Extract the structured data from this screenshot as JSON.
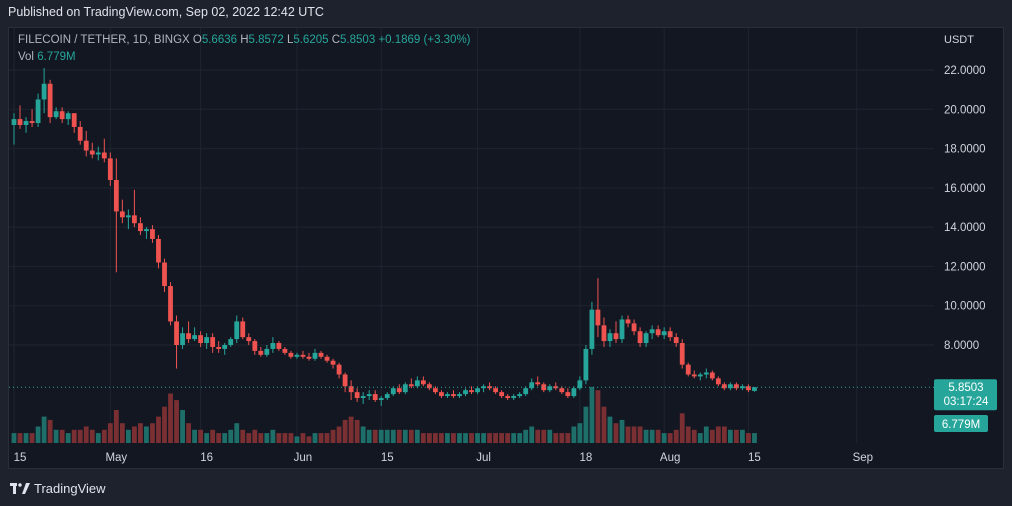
{
  "header": {
    "published": "Published on TradingView.com, Sep 02, 2022 12:42 UTC"
  },
  "legend": {
    "symbol": "FILECOIN / TETHER, 1D, BINGX",
    "o_label": "O",
    "o": "5.6636",
    "h_label": "H",
    "h": "5.8572",
    "l_label": "L",
    "l": "5.6205",
    "c_label": "C",
    "c": "5.8503",
    "change": "+0.1869 (+3.30%)",
    "vol_label": "Vol",
    "vol": "6.779M"
  },
  "axis": {
    "unit": "USDT"
  },
  "badges": {
    "price": "5.8503",
    "countdown": "03:17:24",
    "volume": "6.779M"
  },
  "footer": {
    "brand": "TradingView"
  },
  "colors": {
    "up": "#26a69a",
    "down": "#ef5350",
    "up_vol": "#1e6e69",
    "down_vol": "#7a2f33",
    "background": "#131722",
    "grid": "#1f2430"
  },
  "chart_data": {
    "type": "candlestick",
    "yticks": [
      "22.0000",
      "20.0000",
      "18.0000",
      "16.0000",
      "14.0000",
      "12.0000",
      "10.0000",
      "8.0000"
    ],
    "ylim": [
      4.5,
      23.5
    ],
    "xticks": [
      {
        "label": "15",
        "day": 0
      },
      {
        "label": "May",
        "day": 16
      },
      {
        "label": "16",
        "day": 31
      },
      {
        "label": "Jun",
        "day": 47
      },
      {
        "label": "15",
        "day": 61
      },
      {
        "label": "Jul",
        "day": 77
      },
      {
        "label": "18",
        "day": 94
      },
      {
        "label": "Aug",
        "day": 108
      },
      {
        "label": "15",
        "day": 122
      },
      {
        "label": "Sep",
        "day": 140
      }
    ],
    "last_price": 5.8503,
    "candles": [
      [
        19.2,
        19.8,
        18.2,
        19.5,
        3
      ],
      [
        19.5,
        20.2,
        19.0,
        19.2,
        3
      ],
      [
        19.2,
        19.6,
        18.8,
        19.4,
        3
      ],
      [
        19.4,
        20.0,
        19.1,
        19.3,
        3
      ],
      [
        19.3,
        20.8,
        19.1,
        20.5,
        5
      ],
      [
        20.5,
        22.1,
        19.8,
        21.3,
        8
      ],
      [
        21.3,
        21.5,
        19.3,
        19.6,
        7
      ],
      [
        19.6,
        20.1,
        19.5,
        19.9,
        4
      ],
      [
        19.9,
        20.1,
        19.3,
        19.5,
        4
      ],
      [
        19.5,
        19.9,
        19.2,
        19.8,
        3
      ],
      [
        19.8,
        19.8,
        18.8,
        19.1,
        4
      ],
      [
        19.1,
        19.4,
        18.2,
        18.4,
        4
      ],
      [
        18.4,
        18.9,
        17.6,
        17.9,
        5
      ],
      [
        17.9,
        18.3,
        17.5,
        17.7,
        4
      ],
      [
        17.7,
        18.1,
        17.4,
        17.8,
        3
      ],
      [
        17.8,
        18.5,
        17.3,
        17.5,
        4
      ],
      [
        17.5,
        17.8,
        16.1,
        16.4,
        6
      ],
      [
        16.4,
        17.5,
        11.7,
        14.8,
        10
      ],
      [
        14.8,
        15.4,
        14.2,
        14.5,
        6
      ],
      [
        14.5,
        14.9,
        13.9,
        14.6,
        4
      ],
      [
        14.6,
        15.9,
        14.0,
        14.2,
        5
      ],
      [
        14.2,
        14.5,
        13.6,
        13.8,
        6
      ],
      [
        13.8,
        14.0,
        13.4,
        13.9,
        5
      ],
      [
        13.9,
        14.1,
        13.2,
        13.4,
        6
      ],
      [
        13.4,
        13.6,
        11.9,
        12.2,
        8
      ],
      [
        12.2,
        12.4,
        10.7,
        11.0,
        11
      ],
      [
        11.0,
        11.2,
        9.0,
        9.2,
        15
      ],
      [
        9.2,
        9.5,
        6.8,
        8.0,
        13
      ],
      [
        8.0,
        8.9,
        7.8,
        8.6,
        10
      ],
      [
        8.6,
        9.2,
        8.1,
        8.3,
        6
      ],
      [
        8.3,
        8.9,
        8.2,
        8.5,
        4
      ],
      [
        8.5,
        8.7,
        7.9,
        8.1,
        4
      ],
      [
        8.1,
        8.6,
        7.8,
        8.4,
        3
      ],
      [
        8.4,
        8.6,
        7.6,
        7.9,
        4
      ],
      [
        7.9,
        8.2,
        7.6,
        7.8,
        3
      ],
      [
        7.8,
        8.1,
        7.5,
        8.0,
        3
      ],
      [
        8.0,
        8.4,
        7.9,
        8.3,
        4
      ],
      [
        8.3,
        9.5,
        8.1,
        9.2,
        6
      ],
      [
        9.2,
        9.4,
        8.3,
        8.4,
        4
      ],
      [
        8.4,
        8.6,
        8.0,
        8.2,
        3
      ],
      [
        8.2,
        8.3,
        7.5,
        7.7,
        4
      ],
      [
        7.7,
        7.9,
        7.4,
        7.5,
        3
      ],
      [
        7.5,
        8.0,
        7.4,
        7.8,
        3
      ],
      [
        7.8,
        8.4,
        7.6,
        8.1,
        4
      ],
      [
        8.1,
        8.2,
        7.7,
        7.8,
        3
      ],
      [
        7.8,
        7.9,
        7.5,
        7.6,
        3
      ],
      [
        7.6,
        7.7,
        7.3,
        7.4,
        3
      ],
      [
        7.4,
        7.6,
        7.3,
        7.5,
        2
      ],
      [
        7.5,
        7.7,
        7.3,
        7.4,
        3
      ],
      [
        7.4,
        7.6,
        7.2,
        7.3,
        2
      ],
      [
        7.3,
        7.8,
        7.2,
        7.6,
        3
      ],
      [
        7.6,
        7.7,
        7.3,
        7.4,
        3
      ],
      [
        7.4,
        7.5,
        7.1,
        7.2,
        3
      ],
      [
        7.2,
        7.3,
        6.8,
        7.0,
        4
      ],
      [
        7.0,
        7.1,
        6.3,
        6.5,
        5
      ],
      [
        6.5,
        6.6,
        5.6,
        5.9,
        7
      ],
      [
        5.9,
        6.2,
        5.2,
        5.6,
        8
      ],
      [
        5.6,
        5.8,
        5.1,
        5.3,
        7
      ],
      [
        5.3,
        5.6,
        5.0,
        5.4,
        5
      ],
      [
        5.4,
        5.7,
        5.2,
        5.5,
        4
      ],
      [
        5.5,
        5.7,
        5.1,
        5.2,
        4
      ],
      [
        5.2,
        5.4,
        4.9,
        5.3,
        4
      ],
      [
        5.3,
        5.6,
        5.2,
        5.5,
        4
      ],
      [
        5.5,
        5.9,
        5.4,
        5.8,
        4
      ],
      [
        5.8,
        6.0,
        5.5,
        5.6,
        4
      ],
      [
        5.6,
        6.1,
        5.5,
        6.0,
        4
      ],
      [
        6.0,
        6.3,
        5.8,
        5.9,
        4
      ],
      [
        5.9,
        6.4,
        5.8,
        6.2,
        4
      ],
      [
        6.2,
        6.4,
        5.9,
        6.0,
        3
      ],
      [
        6.0,
        6.1,
        5.7,
        5.8,
        3
      ],
      [
        5.8,
        5.9,
        5.5,
        5.6,
        3
      ],
      [
        5.6,
        5.7,
        5.3,
        5.4,
        3
      ],
      [
        5.4,
        5.6,
        5.3,
        5.5,
        3
      ],
      [
        5.5,
        5.7,
        5.3,
        5.4,
        3
      ],
      [
        5.4,
        5.6,
        5.3,
        5.5,
        3
      ],
      [
        5.5,
        5.8,
        5.4,
        5.7,
        3
      ],
      [
        5.7,
        5.9,
        5.5,
        5.6,
        3
      ],
      [
        5.6,
        5.9,
        5.5,
        5.8,
        3
      ],
      [
        5.8,
        6.0,
        5.6,
        5.9,
        3
      ],
      [
        5.9,
        6.1,
        5.7,
        5.8,
        3
      ],
      [
        5.8,
        5.9,
        5.5,
        5.6,
        3
      ],
      [
        5.6,
        5.7,
        5.3,
        5.4,
        3
      ],
      [
        5.4,
        5.5,
        5.2,
        5.3,
        3
      ],
      [
        5.3,
        5.5,
        5.2,
        5.4,
        3
      ],
      [
        5.4,
        5.6,
        5.3,
        5.5,
        3
      ],
      [
        5.5,
        5.9,
        5.4,
        5.8,
        4
      ],
      [
        5.8,
        6.3,
        5.7,
        6.1,
        5
      ],
      [
        6.1,
        6.4,
        5.9,
        6.0,
        4
      ],
      [
        6.0,
        6.1,
        5.6,
        5.7,
        4
      ],
      [
        5.7,
        6.0,
        5.6,
        5.9,
        4
      ],
      [
        5.9,
        6.1,
        5.7,
        5.8,
        3
      ],
      [
        5.8,
        5.9,
        5.5,
        5.6,
        3
      ],
      [
        5.6,
        5.8,
        5.3,
        5.4,
        3
      ],
      [
        5.4,
        5.9,
        5.3,
        5.8,
        5
      ],
      [
        5.8,
        6.4,
        5.7,
        6.2,
        6
      ],
      [
        6.2,
        8.0,
        6.0,
        7.8,
        11
      ],
      [
        7.8,
        10.2,
        7.5,
        9.8,
        17
      ],
      [
        9.8,
        11.4,
        8.4,
        9.0,
        16
      ],
      [
        9.0,
        9.4,
        7.9,
        8.2,
        11
      ],
      [
        8.2,
        8.8,
        7.9,
        8.6,
        8
      ],
      [
        8.6,
        9.2,
        8.1,
        8.3,
        6
      ],
      [
        8.3,
        9.5,
        8.1,
        9.3,
        7
      ],
      [
        9.3,
        9.5,
        8.9,
        9.1,
        5
      ],
      [
        9.1,
        9.3,
        8.5,
        8.7,
        5
      ],
      [
        8.7,
        8.9,
        7.9,
        8.1,
        5
      ],
      [
        8.1,
        8.7,
        7.9,
        8.6,
        4
      ],
      [
        8.6,
        9.0,
        8.3,
        8.8,
        4
      ],
      [
        8.8,
        9.0,
        8.4,
        8.5,
        4
      ],
      [
        8.5,
        8.9,
        8.3,
        8.7,
        3
      ],
      [
        8.7,
        8.9,
        8.2,
        8.4,
        3
      ],
      [
        8.4,
        8.6,
        7.9,
        8.1,
        4
      ],
      [
        8.1,
        8.3,
        6.8,
        7.0,
        9
      ],
      [
        7.0,
        7.1,
        6.4,
        6.5,
        5
      ],
      [
        6.5,
        6.7,
        6.3,
        6.4,
        4
      ],
      [
        6.4,
        6.6,
        6.2,
        6.5,
        3
      ],
      [
        6.5,
        6.8,
        6.3,
        6.6,
        5
      ],
      [
        6.6,
        6.7,
        6.2,
        6.3,
        4
      ],
      [
        6.3,
        6.4,
        5.9,
        6.0,
        5
      ],
      [
        6.0,
        6.1,
        5.7,
        5.8,
        5
      ],
      [
        5.8,
        6.1,
        5.7,
        6.0,
        4
      ],
      [
        6.0,
        6.1,
        5.7,
        5.8,
        4
      ],
      [
        5.8,
        6.0,
        5.7,
        5.9,
        4
      ],
      [
        5.9,
        6.0,
        5.6,
        5.7,
        3
      ],
      [
        5.664,
        5.857,
        5.621,
        5.85,
        3
      ]
    ]
  }
}
